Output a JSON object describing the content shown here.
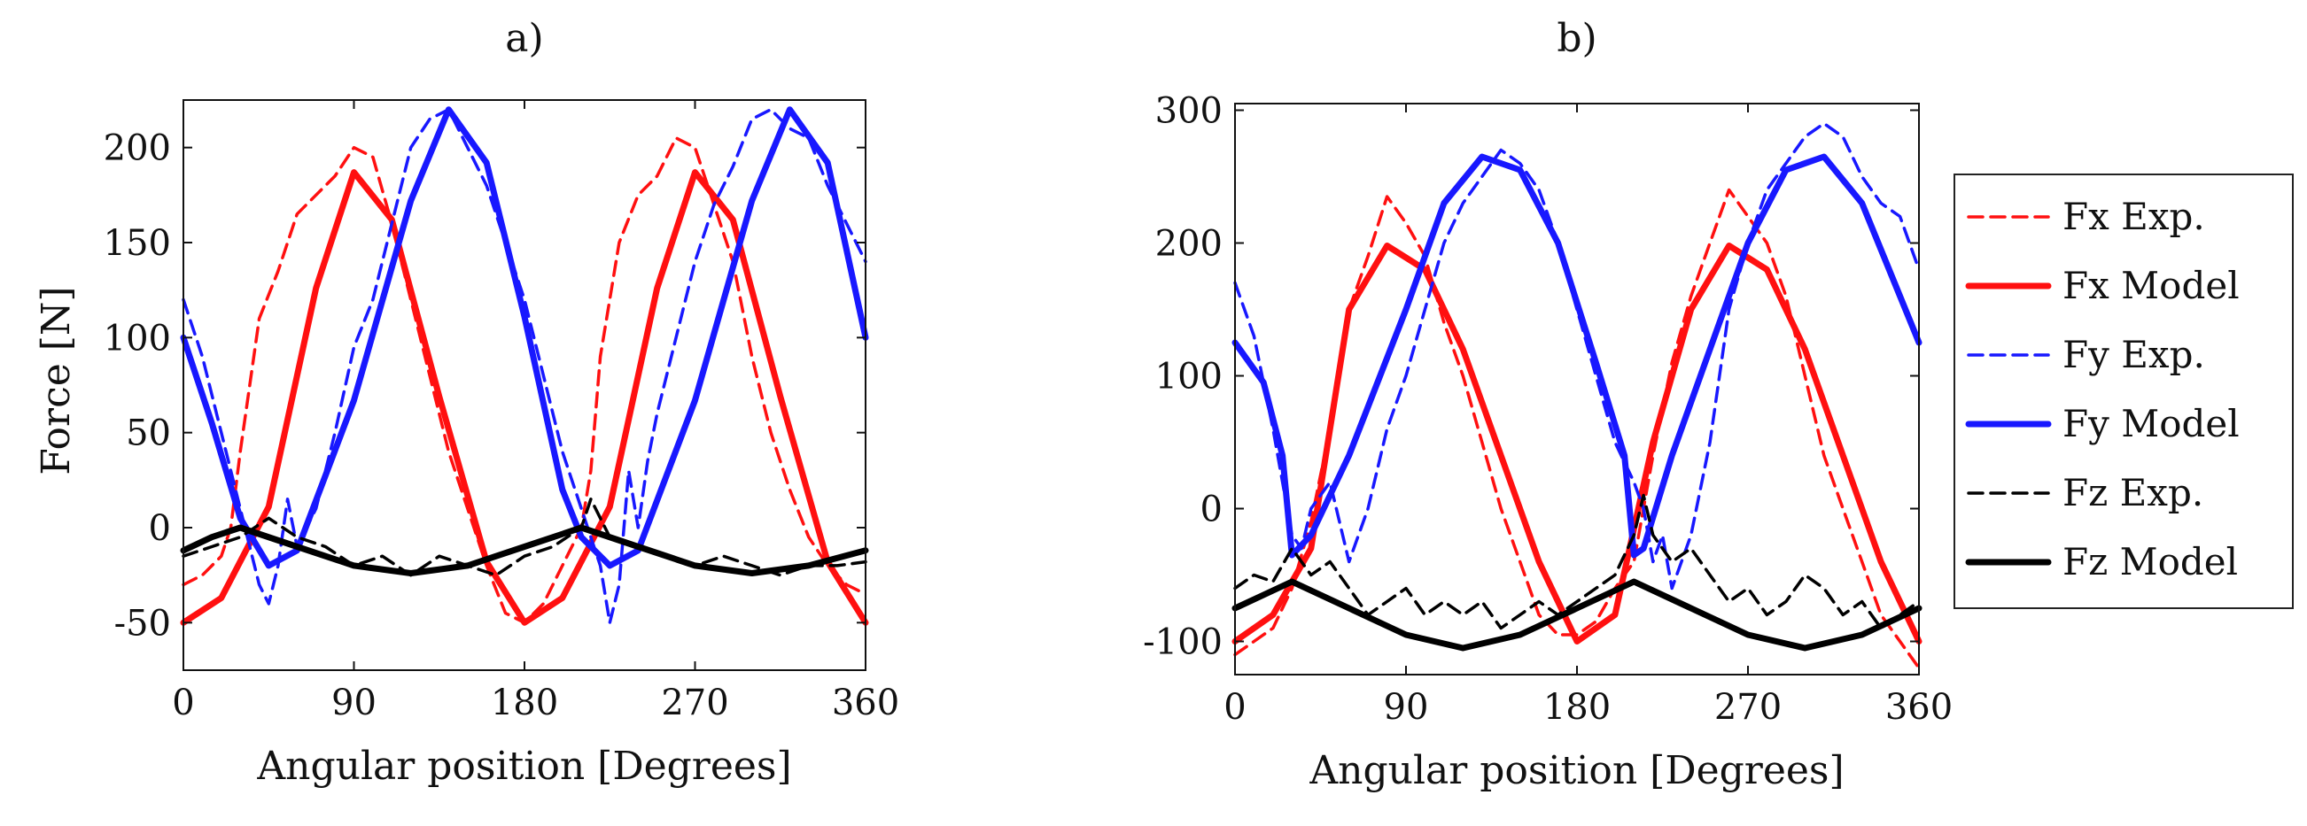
{
  "legend": {
    "entries": [
      {
        "label": "Fx Exp.",
        "color": "#ff1010",
        "dashed": true
      },
      {
        "label": "Fx Model",
        "color": "#ff1010",
        "dashed": false
      },
      {
        "label": "Fy Exp.",
        "color": "#1818ff",
        "dashed": true
      },
      {
        "label": "Fy Model",
        "color": "#1818ff",
        "dashed": false
      },
      {
        "label": "Fz Exp.",
        "color": "#000000",
        "dashed": true
      },
      {
        "label": "Fz Model",
        "color": "#000000",
        "dashed": false
      }
    ]
  },
  "chart_data": [
    {
      "type": "line",
      "title": "a)",
      "xlabel": "Angular position [Degrees]",
      "ylabel": "Force [N]",
      "xlim": [
        0,
        360
      ],
      "ylim": [
        -75,
        225
      ],
      "xticks": [
        0,
        90,
        180,
        270,
        360
      ],
      "yticks": [
        -50,
        0,
        50,
        100,
        150,
        200
      ],
      "series": [
        {
          "name": "Fx Exp.",
          "color": "#ff1010",
          "dashed": true,
          "x": [
            0,
            10,
            20,
            25,
            30,
            40,
            50,
            60,
            70,
            80,
            90,
            100,
            110,
            120,
            130,
            140,
            150,
            160,
            170,
            180,
            190,
            200,
            210,
            215,
            220,
            230,
            240,
            250,
            260,
            270,
            280,
            290,
            300,
            310,
            320,
            330,
            340,
            350,
            360
          ],
          "y": [
            -30,
            -25,
            -15,
            0,
            40,
            110,
            135,
            165,
            175,
            185,
            200,
            195,
            160,
            120,
            80,
            40,
            10,
            -20,
            -45,
            -50,
            -40,
            -20,
            0,
            30,
            90,
            150,
            175,
            185,
            205,
            200,
            170,
            140,
            90,
            50,
            20,
            -5,
            -20,
            -30,
            -35
          ]
        },
        {
          "name": "Fx Model",
          "color": "#ff1010",
          "dashed": false,
          "x": [
            0,
            20,
            45,
            70,
            90,
            110,
            135,
            160,
            180,
            200,
            225,
            250,
            270,
            290,
            315,
            340,
            360
          ],
          "y": [
            -50,
            -37,
            11,
            126,
            187,
            162,
            69,
            -18,
            -50,
            -37,
            11,
            126,
            187,
            162,
            69,
            -18,
            -50
          ]
        },
        {
          "name": "Fy Exp.",
          "color": "#1818ff",
          "dashed": true,
          "x": [
            0,
            10,
            20,
            30,
            35,
            40,
            45,
            50,
            55,
            60,
            70,
            80,
            90,
            100,
            110,
            120,
            130,
            140,
            150,
            160,
            170,
            180,
            190,
            200,
            210,
            220,
            225,
            230,
            235,
            240,
            245,
            250,
            260,
            270,
            280,
            290,
            300,
            310,
            320,
            330,
            340,
            350,
            360
          ],
          "y": [
            120,
            90,
            50,
            10,
            -10,
            -30,
            -40,
            -20,
            15,
            -10,
            10,
            50,
            95,
            120,
            160,
            200,
            215,
            220,
            200,
            180,
            150,
            120,
            80,
            40,
            10,
            -20,
            -50,
            -30,
            30,
            0,
            35,
            60,
            100,
            140,
            170,
            190,
            215,
            220,
            210,
            205,
            180,
            160,
            140
          ]
        },
        {
          "name": "Fy Model",
          "color": "#1818ff",
          "dashed": false,
          "x": [
            0,
            15,
            30,
            45,
            60,
            90,
            120,
            140,
            160,
            180,
            200,
            210,
            225,
            240,
            270,
            300,
            320,
            340,
            360
          ],
          "y": [
            100,
            55,
            5,
            -20,
            -12,
            67,
            172,
            220,
            192,
            111,
            20,
            -5,
            -20,
            -12,
            67,
            172,
            220,
            192,
            100
          ]
        },
        {
          "name": "Fz Exp.",
          "color": "#000000",
          "dashed": true,
          "x": [
            0,
            15,
            30,
            45,
            60,
            75,
            90,
            105,
            120,
            135,
            150,
            165,
            180,
            195,
            210,
            215,
            225,
            240,
            255,
            270,
            285,
            300,
            315,
            330,
            345,
            360
          ],
          "y": [
            -15,
            -10,
            -5,
            5,
            -5,
            -10,
            -20,
            -15,
            -25,
            -15,
            -20,
            -25,
            -15,
            -10,
            0,
            15,
            -5,
            -10,
            -15,
            -20,
            -15,
            -20,
            -25,
            -20,
            -20,
            -18
          ]
        },
        {
          "name": "Fz Model",
          "color": "#000000",
          "dashed": false,
          "x": [
            0,
            15,
            30,
            60,
            90,
            120,
            150,
            180,
            210,
            240,
            270,
            300,
            330,
            360
          ],
          "y": [
            -12,
            -5,
            0,
            -10,
            -20,
            -24,
            -20,
            -10,
            0,
            -10,
            -20,
            -24,
            -20,
            -12
          ]
        }
      ]
    },
    {
      "type": "line",
      "title": "b)",
      "xlabel": "Angular position [Degrees]",
      "ylabel": "",
      "xlim": [
        0,
        360
      ],
      "ylim": [
        -125,
        305
      ],
      "xticks": [
        0,
        90,
        180,
        270,
        360
      ],
      "yticks": [
        -100,
        0,
        100,
        200,
        300
      ],
      "series": [
        {
          "name": "Fx Exp.",
          "color": "#ff1010",
          "dashed": true,
          "x": [
            0,
            10,
            20,
            30,
            40,
            50,
            60,
            70,
            80,
            90,
            100,
            110,
            120,
            130,
            140,
            150,
            160,
            170,
            180,
            190,
            200,
            210,
            220,
            230,
            240,
            250,
            260,
            270,
            280,
            290,
            300,
            310,
            320,
            330,
            340,
            350,
            360
          ],
          "y": [
            -110,
            -100,
            -90,
            -60,
            -10,
            60,
            150,
            190,
            235,
            215,
            190,
            140,
            100,
            50,
            0,
            -40,
            -80,
            -95,
            -95,
            -85,
            -60,
            -40,
            40,
            110,
            160,
            200,
            240,
            220,
            200,
            160,
            100,
            40,
            0,
            -40,
            -80,
            -100,
            -120
          ]
        },
        {
          "name": "Fx Model",
          "color": "#ff1010",
          "dashed": false,
          "x": [
            0,
            20,
            40,
            60,
            80,
            100,
            120,
            140,
            160,
            180,
            200,
            220,
            240,
            260,
            280,
            300,
            320,
            340,
            360
          ],
          "y": [
            -100,
            -80,
            -30,
            150,
            198,
            180,
            120,
            40,
            -40,
            -100,
            -80,
            50,
            150,
            198,
            180,
            120,
            40,
            -40,
            -100
          ]
        },
        {
          "name": "Fy Exp.",
          "color": "#1818ff",
          "dashed": true,
          "x": [
            0,
            10,
            20,
            25,
            30,
            35,
            40,
            50,
            60,
            70,
            80,
            90,
            100,
            110,
            120,
            130,
            140,
            150,
            160,
            170,
            180,
            190,
            200,
            210,
            215,
            220,
            225,
            230,
            240,
            250,
            260,
            270,
            280,
            290,
            300,
            310,
            320,
            330,
            340,
            350,
            360
          ],
          "y": [
            170,
            130,
            60,
            20,
            -20,
            -30,
            0,
            20,
            -40,
            0,
            60,
            100,
            150,
            200,
            230,
            250,
            270,
            260,
            240,
            200,
            150,
            100,
            50,
            20,
            0,
            -40,
            -20,
            -60,
            -20,
            50,
            150,
            200,
            240,
            260,
            280,
            290,
            280,
            250,
            230,
            220,
            180
          ]
        },
        {
          "name": "Fy Model",
          "color": "#1818ff",
          "dashed": false,
          "x": [
            0,
            15,
            25,
            30,
            40,
            60,
            90,
            110,
            130,
            150,
            170,
            190,
            205,
            210,
            215,
            230,
            250,
            270,
            290,
            310,
            330,
            350,
            360
          ],
          "y": [
            125,
            95,
            40,
            -35,
            -20,
            40,
            150,
            230,
            265,
            255,
            200,
            110,
            40,
            -35,
            -30,
            40,
            120,
            200,
            255,
            265,
            230,
            160,
            125
          ]
        },
        {
          "name": "Fz Exp.",
          "color": "#000000",
          "dashed": true,
          "x": [
            0,
            10,
            20,
            30,
            40,
            50,
            60,
            70,
            80,
            90,
            100,
            110,
            120,
            130,
            140,
            150,
            160,
            170,
            180,
            190,
            200,
            210,
            215,
            220,
            230,
            240,
            250,
            260,
            270,
            280,
            290,
            300,
            310,
            320,
            330,
            340,
            350,
            360
          ],
          "y": [
            -60,
            -50,
            -55,
            -30,
            -50,
            -40,
            -60,
            -80,
            -70,
            -60,
            -80,
            -70,
            -80,
            -70,
            -90,
            -80,
            -70,
            -80,
            -70,
            -60,
            -50,
            -20,
            10,
            -20,
            -40,
            -30,
            -50,
            -70,
            -60,
            -80,
            -70,
            -50,
            -60,
            -80,
            -70,
            -90,
            -80,
            -70
          ]
        },
        {
          "name": "Fz Model",
          "color": "#000000",
          "dashed": false,
          "x": [
            0,
            15,
            30,
            60,
            90,
            120,
            150,
            180,
            210,
            240,
            270,
            300,
            330,
            360
          ],
          "y": [
            -75,
            -65,
            -55,
            -75,
            -95,
            -105,
            -95,
            -75,
            -55,
            -75,
            -95,
            -105,
            -95,
            -75
          ]
        }
      ]
    }
  ]
}
